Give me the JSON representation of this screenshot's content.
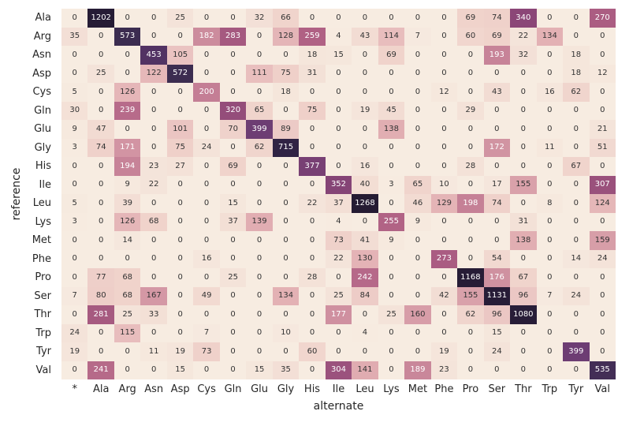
{
  "chart_data": {
    "type": "heatmap",
    "xlabel": "alternate",
    "ylabel": "reference",
    "legend": "none",
    "grid": false,
    "columns": [
      "*",
      "Ala",
      "Arg",
      "Asn",
      "Asp",
      "Cys",
      "Gln",
      "Glu",
      "Gly",
      "His",
      "Ile",
      "Leu",
      "Lys",
      "Met",
      "Phe",
      "Pro",
      "Ser",
      "Thr",
      "Trp",
      "Tyr",
      "Val"
    ],
    "rows": [
      "Ala",
      "Arg",
      "Asn",
      "Asp",
      "Cys",
      "Gln",
      "Glu",
      "Gly",
      "His",
      "Ile",
      "Leu",
      "Lys",
      "Met",
      "Phe",
      "Pro",
      "Ser",
      "Thr",
      "Trp",
      "Tyr",
      "Val"
    ],
    "values": [
      [
        0,
        1202,
        0,
        0,
        25,
        0,
        0,
        32,
        66,
        0,
        0,
        0,
        0,
        0,
        0,
        69,
        74,
        340,
        0,
        0,
        270
      ],
      [
        35,
        0,
        573,
        0,
        0,
        182,
        283,
        0,
        128,
        259,
        4,
        43,
        114,
        7,
        0,
        60,
        69,
        22,
        134,
        0,
        0
      ],
      [
        0,
        0,
        0,
        453,
        105,
        0,
        0,
        0,
        0,
        18,
        15,
        0,
        69,
        0,
        0,
        0,
        193,
        32,
        0,
        18,
        0
      ],
      [
        0,
        25,
        0,
        122,
        572,
        0,
        0,
        111,
        75,
        31,
        0,
        0,
        0,
        0,
        0,
        0,
        0,
        0,
        0,
        18,
        12
      ],
      [
        5,
        0,
        126,
        0,
        0,
        200,
        0,
        0,
        18,
        0,
        0,
        0,
        0,
        0,
        12,
        0,
        43,
        0,
        16,
        62,
        0
      ],
      [
        30,
        0,
        239,
        0,
        0,
        0,
        320,
        65,
        0,
        75,
        0,
        19,
        45,
        0,
        0,
        29,
        0,
        0,
        0,
        0,
        0
      ],
      [
        9,
        47,
        0,
        0,
        101,
        0,
        70,
        399,
        89,
        0,
        0,
        0,
        138,
        0,
        0,
        0,
        0,
        0,
        0,
        0,
        21
      ],
      [
        3,
        74,
        171,
        0,
        75,
        24,
        0,
        62,
        715,
        0,
        0,
        0,
        0,
        0,
        0,
        0,
        172,
        0,
        11,
        0,
        51
      ],
      [
        0,
        0,
        194,
        23,
        27,
        0,
        69,
        0,
        0,
        377,
        0,
        16,
        0,
        0,
        0,
        28,
        0,
        0,
        0,
        67,
        0
      ],
      [
        0,
        0,
        9,
        22,
        0,
        0,
        0,
        0,
        0,
        0,
        352,
        40,
        3,
        65,
        10,
        0,
        17,
        155,
        0,
        0,
        307
      ],
      [
        5,
        0,
        39,
        0,
        0,
        0,
        15,
        0,
        0,
        22,
        37,
        1268,
        0,
        46,
        129,
        198,
        74,
        0,
        8,
        0,
        124
      ],
      [
        3,
        0,
        126,
        68,
        0,
        0,
        37,
        139,
        0,
        0,
        4,
        0,
        255,
        9,
        0,
        0,
        0,
        31,
        0,
        0,
        0
      ],
      [
        0,
        0,
        14,
        0,
        0,
        0,
        0,
        0,
        0,
        0,
        73,
        41,
        9,
        0,
        0,
        0,
        0,
        138,
        0,
        0,
        159
      ],
      [
        0,
        0,
        0,
        0,
        0,
        16,
        0,
        0,
        0,
        0,
        22,
        130,
        0,
        0,
        273,
        0,
        54,
        0,
        0,
        14,
        24
      ],
      [
        0,
        77,
        68,
        0,
        0,
        0,
        25,
        0,
        0,
        28,
        0,
        242,
        0,
        0,
        0,
        1168,
        176,
        67,
        0,
        0,
        0
      ],
      [
        7,
        80,
        68,
        167,
        0,
        49,
        0,
        0,
        134,
        0,
        25,
        84,
        0,
        0,
        42,
        155,
        1131,
        96,
        7,
        24,
        0
      ],
      [
        0,
        281,
        25,
        33,
        0,
        0,
        0,
        0,
        0,
        0,
        177,
        0,
        25,
        160,
        0,
        62,
        96,
        1080,
        0,
        0,
        0
      ],
      [
        24,
        0,
        115,
        0,
        0,
        7,
        0,
        0,
        10,
        0,
        0,
        4,
        0,
        0,
        0,
        0,
        15,
        0,
        0,
        0,
        0
      ],
      [
        19,
        0,
        0,
        11,
        19,
        73,
        0,
        0,
        0,
        60,
        0,
        0,
        0,
        0,
        19,
        0,
        24,
        0,
        0,
        399,
        0
      ],
      [
        0,
        241,
        0,
        0,
        15,
        0,
        0,
        15,
        35,
        0,
        304,
        141,
        0,
        189,
        23,
        0,
        0,
        0,
        0,
        0,
        535
      ]
    ],
    "vmin": 0,
    "vmax": 1268,
    "colormap_anchors": [
      [
        0,
        "#f7ece1"
      ],
      [
        25,
        "#f4e3d9"
      ],
      [
        66,
        "#f0d4cc"
      ],
      [
        105,
        "#eac3c1"
      ],
      [
        134,
        "#e3b1b4"
      ],
      [
        200,
        "#c47e95"
      ],
      [
        259,
        "#b06184"
      ],
      [
        340,
        "#8b4677"
      ],
      [
        399,
        "#6d3d73"
      ],
      [
        453,
        "#523263"
      ],
      [
        573,
        "#3c2c50"
      ],
      [
        715,
        "#302344"
      ],
      [
        1080,
        "#281d38"
      ],
      [
        1268,
        "#251b33"
      ]
    ],
    "white_text_threshold": 170,
    "annotation_color_dark": "#333333",
    "annotation_color_light": "#ffffff",
    "tick_color": "#262626",
    "background_color": "#ffffff"
  }
}
